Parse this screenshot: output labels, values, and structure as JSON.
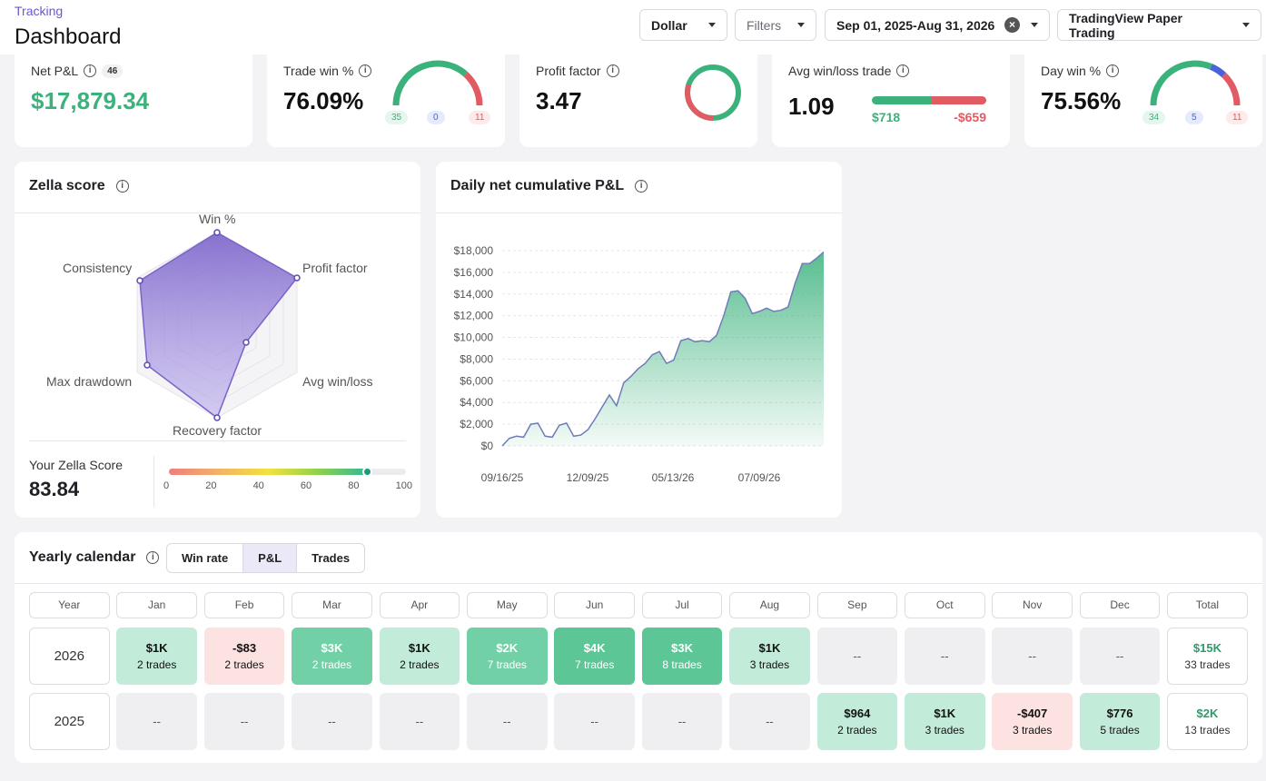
{
  "header": {
    "breadcrumb": "Tracking",
    "title": "Dashboard",
    "currency_label": "Dollar",
    "filters_label": "Filters",
    "date_range": "Sep 01, 2025-Aug 31, 2026",
    "account_label": "TradingView Paper Trading"
  },
  "kpis": {
    "net_pnl": {
      "label": "Net P&L",
      "count": "46",
      "value": "$17,879.34"
    },
    "trade_win": {
      "label": "Trade win %",
      "value": "76.09%",
      "wins": "35",
      "breakeven": "0",
      "losses": "11"
    },
    "profit_factor": {
      "label": "Profit factor",
      "value": "3.47"
    },
    "avg_win_loss": {
      "label": "Avg win/loss trade",
      "value": "1.09",
      "avg_win": "$718",
      "avg_loss": "-$659"
    },
    "day_win": {
      "label": "Day win %",
      "value": "75.56%",
      "wins": "34",
      "breakeven": "5",
      "losses": "11"
    }
  },
  "zella": {
    "title": "Zella score",
    "axes": [
      "Win %",
      "Profit factor",
      "Avg win/loss",
      "Recovery factor",
      "Max drawdown",
      "Consistency"
    ],
    "score_label": "Your Zella Score",
    "score_value": "83.84",
    "score_pct": 83.84,
    "scale_ticks": [
      "0",
      "20",
      "40",
      "60",
      "80",
      "100"
    ]
  },
  "chart_title": "Daily net cumulative P&L",
  "chart_data": {
    "type": "area",
    "title": "Daily net cumulative P&L",
    "ylim": [
      0,
      18000
    ],
    "yticks": [
      "$18,000",
      "$16,000",
      "$14,000",
      "$12,000",
      "$10,000",
      "$8,000",
      "$6,000",
      "$4,000",
      "$2,000",
      "$0"
    ],
    "xticks": [
      "09/16/25",
      "12/09/25",
      "05/13/26",
      "07/09/26"
    ],
    "values": [
      0,
      700,
      900,
      800,
      2000,
      2100,
      900,
      800,
      1900,
      2100,
      900,
      1000,
      1500,
      2500,
      3600,
      4700,
      3700,
      5800,
      6400,
      7100,
      7600,
      8400,
      8700,
      7600,
      7900,
      9700,
      9900,
      9600,
      9700,
      9600,
      10200,
      12000,
      14200,
      14300,
      13600,
      12200,
      12400,
      12700,
      12400,
      12500,
      12800,
      15000,
      16800,
      16800,
      17300,
      17879
    ]
  },
  "calendar": {
    "title": "Yearly calendar",
    "tabs": [
      "Win rate",
      "P&L",
      "Trades"
    ],
    "headers": [
      "Year",
      "Jan",
      "Feb",
      "Mar",
      "Apr",
      "May",
      "Jun",
      "Jul",
      "Aug",
      "Sep",
      "Oct",
      "Nov",
      "Dec",
      "Total"
    ],
    "rows": [
      {
        "year": "2026",
        "cells": [
          {
            "v": "$1K",
            "t": "2 trades",
            "s": "l1"
          },
          {
            "v": "-$83",
            "t": "2 trades",
            "s": "neg"
          },
          {
            "v": "$3K",
            "t": "2 trades",
            "s": "l2"
          },
          {
            "v": "$1K",
            "t": "2 trades",
            "s": "l1"
          },
          {
            "v": "$2K",
            "t": "7 trades",
            "s": "l2"
          },
          {
            "v": "$4K",
            "t": "7 trades",
            "s": "l3"
          },
          {
            "v": "$3K",
            "t": "8 trades",
            "s": "l3"
          },
          {
            "v": "$1K",
            "t": "3 trades",
            "s": "l1"
          },
          {
            "v": "--",
            "t": "",
            "s": "empty"
          },
          {
            "v": "--",
            "t": "",
            "s": "empty"
          },
          {
            "v": "--",
            "t": "",
            "s": "empty"
          },
          {
            "v": "--",
            "t": "",
            "s": "empty"
          },
          {
            "v": "$15K",
            "t": "33 trades",
            "s": "tot"
          }
        ]
      },
      {
        "year": "2025",
        "cells": [
          {
            "v": "--",
            "t": "",
            "s": "empty"
          },
          {
            "v": "--",
            "t": "",
            "s": "empty"
          },
          {
            "v": "--",
            "t": "",
            "s": "empty"
          },
          {
            "v": "--",
            "t": "",
            "s": "empty"
          },
          {
            "v": "--",
            "t": "",
            "s": "empty"
          },
          {
            "v": "--",
            "t": "",
            "s": "empty"
          },
          {
            "v": "--",
            "t": "",
            "s": "empty"
          },
          {
            "v": "--",
            "t": "",
            "s": "empty"
          },
          {
            "v": "$964",
            "t": "2 trades",
            "s": "l1"
          },
          {
            "v": "$1K",
            "t": "3 trades",
            "s": "l1"
          },
          {
            "v": "-$407",
            "t": "3 trades",
            "s": "neg"
          },
          {
            "v": "$776",
            "t": "5 trades",
            "s": "l1"
          },
          {
            "v": "$2K",
            "t": "13 trades",
            "s": "tot"
          }
        ]
      }
    ]
  },
  "colors": {
    "accent": "#6e56cf",
    "positive": "#3bb27c",
    "negative": "#e05b62",
    "neutral": "#4a63d8"
  }
}
